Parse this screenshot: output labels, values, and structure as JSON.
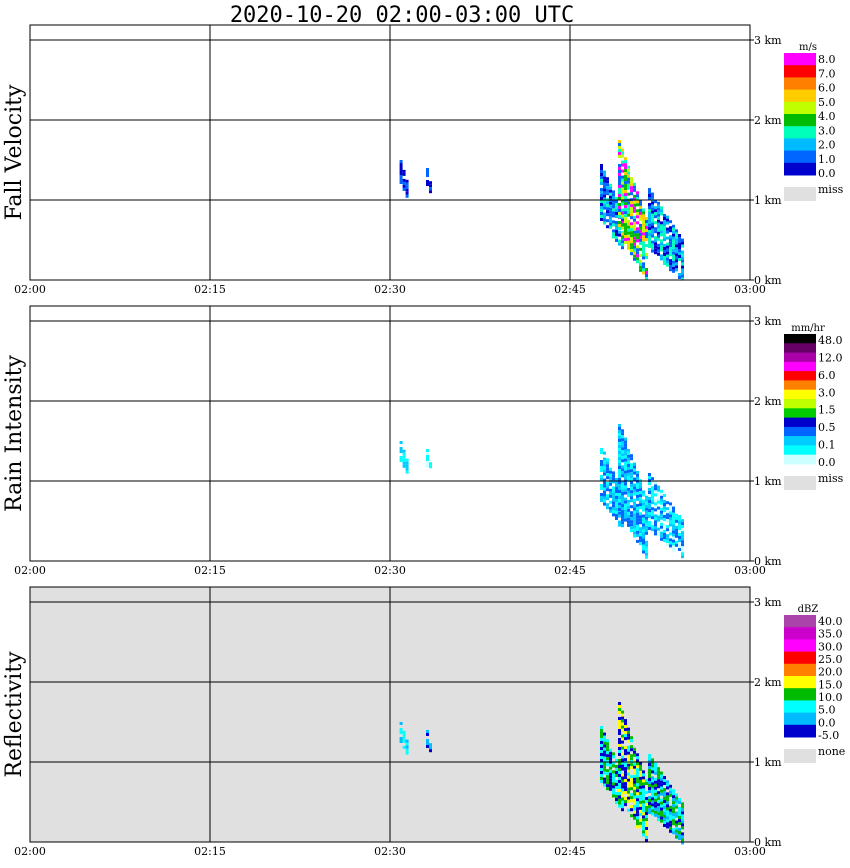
{
  "title": "2020-10-20   02:00-03:00 UTC",
  "chart_data": [
    {
      "type": "heatmap",
      "ylabel": "Fall Velocity",
      "x_ticks": [
        "02:00",
        "02:15",
        "02:30",
        "02:45",
        "03:00"
      ],
      "y_ticks": [
        "0 km",
        "1 km",
        "2 km",
        "3 km"
      ],
      "xlim": [
        "02:00",
        "03:00"
      ],
      "ylim_km": [
        0,
        3.0
      ],
      "background": "#ffffff",
      "legend": {
        "unit": "m/s",
        "labels": [
          "8.0",
          "7.0",
          "6.0",
          "5.0",
          "4.0",
          "3.0",
          "2.0",
          "1.0",
          "0.0"
        ],
        "colors": [
          "#ff00ff",
          "#ff0000",
          "#ff7f00",
          "#ffcc00",
          "#bfff00",
          "#00bb00",
          "#00ffbb",
          "#00bbff",
          "#0066ff",
          "#0000cc"
        ],
        "missing_label": "miss",
        "missing_color": "#e0e0e0"
      },
      "echoes": [
        {
          "label": "echo-a",
          "t_start_min": 30.8,
          "t_end_min": 31.6,
          "base_km": 1.05,
          "top_km": 1.5,
          "colors": [
            "#0066ff",
            "#0000cc"
          ]
        },
        {
          "label": "echo-b",
          "t_start_min": 33.0,
          "t_end_min": 33.4,
          "base_km": 1.1,
          "top_km": 1.4,
          "colors": [
            "#0000cc",
            "#0066ff"
          ]
        },
        {
          "label": "echo-c",
          "t_start_min": 47.5,
          "t_end_min": 49.5,
          "base_km": 0.4,
          "top_km": 1.45,
          "colors": [
            "#0000cc",
            "#0066ff",
            "#00bbff",
            "#00ffbb"
          ]
        },
        {
          "label": "echo-d",
          "t_start_min": 49.0,
          "t_end_min": 51.5,
          "base_km": 0.0,
          "top_km": 1.75,
          "colors": [
            "#00ffbb",
            "#bfff00",
            "#00bb00",
            "#ffcc00",
            "#0066ff",
            "#ff00ff"
          ]
        },
        {
          "label": "echo-e",
          "t_start_min": 51.5,
          "t_end_min": 54.5,
          "base_km": 0.0,
          "top_km": 1.15,
          "colors": [
            "#0066ff",
            "#00bbff",
            "#00ffbb",
            "#0000cc"
          ]
        }
      ]
    },
    {
      "type": "heatmap",
      "ylabel": "Rain Intensity",
      "x_ticks": [
        "02:00",
        "02:15",
        "02:30",
        "02:45",
        "03:00"
      ],
      "y_ticks": [
        "0 km",
        "1 km",
        "2 km",
        "3 km"
      ],
      "xlim": [
        "02:00",
        "03:00"
      ],
      "ylim_km": [
        0,
        3.0
      ],
      "background": "#ffffff",
      "legend": {
        "unit": "mm/hr",
        "labels": [
          "48.0",
          "12.0",
          "6.0",
          "3.0",
          "1.5",
          "0.5",
          "0.1",
          "0.0"
        ],
        "colors": [
          "#000000",
          "#660066",
          "#aa00aa",
          "#ff00ff",
          "#ff0000",
          "#ff7f00",
          "#ffff00",
          "#bfff00",
          "#00cc00",
          "#0000cc",
          "#0066ff",
          "#00ccff",
          "#00ffff",
          "#ccffff"
        ],
        "missing_label": "miss",
        "missing_color": "#e0e0e0"
      },
      "echoes": [
        {
          "label": "echo-a",
          "t_start_min": 30.8,
          "t_end_min": 31.6,
          "base_km": 1.1,
          "top_km": 1.5,
          "colors": [
            "#00ffff",
            "#00ccff"
          ]
        },
        {
          "label": "echo-b",
          "t_start_min": 33.0,
          "t_end_min": 33.4,
          "base_km": 1.1,
          "top_km": 1.4,
          "colors": [
            "#00ffff",
            "#ccffff"
          ]
        },
        {
          "label": "echo-c",
          "t_start_min": 47.5,
          "t_end_min": 49.5,
          "base_km": 0.4,
          "top_km": 1.45,
          "colors": [
            "#00ffff",
            "#00ccff",
            "#0066ff"
          ]
        },
        {
          "label": "echo-d",
          "t_start_min": 49.0,
          "t_end_min": 51.5,
          "base_km": 0.05,
          "top_km": 1.75,
          "colors": [
            "#00ccff",
            "#00ffff",
            "#0066ff"
          ]
        },
        {
          "label": "echo-e",
          "t_start_min": 51.5,
          "t_end_min": 54.5,
          "base_km": 0.05,
          "top_km": 1.1,
          "colors": [
            "#00ffff",
            "#ccffff",
            "#00ccff",
            "#0066ff"
          ]
        }
      ]
    },
    {
      "type": "heatmap",
      "ylabel": "Reflectivity",
      "x_ticks": [
        "02:00",
        "02:15",
        "02:30",
        "02:45",
        "03:00"
      ],
      "y_ticks": [
        "0 km",
        "1 km",
        "2 km",
        "3 km"
      ],
      "xlim": [
        "02:00",
        "03:00"
      ],
      "ylim_km": [
        0,
        3.0
      ],
      "background": "#e0e0e0",
      "legend": {
        "unit": "dBZ",
        "labels": [
          "40.0",
          "35.0",
          "30.0",
          "25.0",
          "20.0",
          "15.0",
          "10.0",
          "5.0",
          "0.0",
          "-5.0"
        ],
        "colors": [
          "#aa44aa",
          "#cc00cc",
          "#ff00ff",
          "#ff0000",
          "#ff7f00",
          "#ffff00",
          "#00bb00",
          "#00ffff",
          "#00bbff",
          "#0000cc"
        ],
        "missing_label": "none",
        "missing_color": "#e0e0e0"
      },
      "echoes": [
        {
          "label": "echo-a",
          "t_start_min": 30.8,
          "t_end_min": 31.6,
          "base_km": 1.1,
          "top_km": 1.5,
          "colors": [
            "#00ffff",
            "#00bbff"
          ]
        },
        {
          "label": "echo-b",
          "t_start_min": 33.0,
          "t_end_min": 33.4,
          "base_km": 1.1,
          "top_km": 1.4,
          "colors": [
            "#0000cc",
            "#00bbff"
          ]
        },
        {
          "label": "echo-c",
          "t_start_min": 47.5,
          "t_end_min": 49.5,
          "base_km": 0.4,
          "top_km": 1.45,
          "colors": [
            "#0000cc",
            "#00ffff",
            "#00bb00"
          ]
        },
        {
          "label": "echo-d",
          "t_start_min": 49.0,
          "t_end_min": 51.5,
          "base_km": 0.0,
          "top_km": 1.75,
          "colors": [
            "#00ffff",
            "#00bb00",
            "#ffff00",
            "#0000cc"
          ]
        },
        {
          "label": "echo-e",
          "t_start_min": 51.5,
          "t_end_min": 54.5,
          "base_km": 0.0,
          "top_km": 1.1,
          "colors": [
            "#00ffff",
            "#0000cc",
            "#00bbff",
            "#00bb00"
          ]
        }
      ]
    }
  ]
}
